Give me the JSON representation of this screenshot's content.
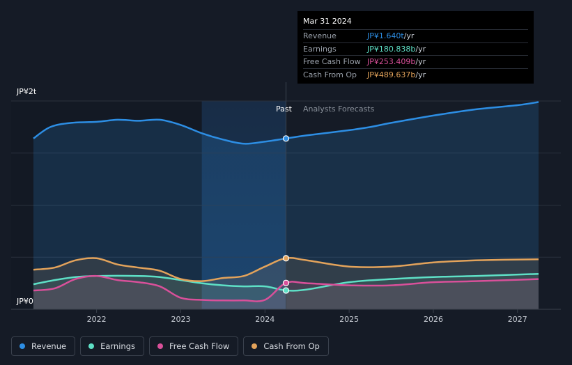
{
  "chart_data": {
    "type": "line",
    "title": "",
    "y_label_top": "JP¥2t",
    "y_label_bottom": "JP¥0",
    "ylim": [
      0,
      2.0
    ],
    "xlim": [
      2021.2,
      2027.25
    ],
    "x_ticks": [
      "2022",
      "2023",
      "2024",
      "2025",
      "2026",
      "2027"
    ],
    "past_label": "Past",
    "forecast_label": "Analysts Forecasts",
    "divider_x": 2024.25,
    "highlight_start": 2023.25,
    "series": [
      {
        "name": "Revenue",
        "unit": "t",
        "color": "#2d8ee4",
        "points": [
          [
            2021.25,
            1.64
          ],
          [
            2021.45,
            1.75
          ],
          [
            2021.7,
            1.79
          ],
          [
            2022.0,
            1.8
          ],
          [
            2022.25,
            1.82
          ],
          [
            2022.5,
            1.81
          ],
          [
            2022.75,
            1.82
          ],
          [
            2023.0,
            1.77
          ],
          [
            2023.25,
            1.69
          ],
          [
            2023.5,
            1.63
          ],
          [
            2023.75,
            1.59
          ],
          [
            2024.0,
            1.61
          ],
          [
            2024.25,
            1.64
          ],
          [
            2024.5,
            1.67
          ],
          [
            2025.0,
            1.72
          ],
          [
            2025.25,
            1.75
          ],
          [
            2025.5,
            1.79
          ],
          [
            2026.0,
            1.86
          ],
          [
            2026.5,
            1.92
          ],
          [
            2027.0,
            1.96
          ],
          [
            2027.25,
            1.99
          ]
        ]
      },
      {
        "name": "Earnings",
        "unit": "b",
        "color": "#5ee0c6",
        "points": [
          [
            2021.25,
            0.24
          ],
          [
            2021.5,
            0.28
          ],
          [
            2021.75,
            0.31
          ],
          [
            2022.0,
            0.32
          ],
          [
            2022.5,
            0.32
          ],
          [
            2022.75,
            0.31
          ],
          [
            2023.0,
            0.28
          ],
          [
            2023.25,
            0.25
          ],
          [
            2023.5,
            0.23
          ],
          [
            2023.75,
            0.22
          ],
          [
            2024.0,
            0.22
          ],
          [
            2024.25,
            0.181
          ],
          [
            2024.5,
            0.19
          ],
          [
            2025.0,
            0.26
          ],
          [
            2025.5,
            0.29
          ],
          [
            2026.0,
            0.31
          ],
          [
            2026.5,
            0.32
          ],
          [
            2027.25,
            0.34
          ]
        ]
      },
      {
        "name": "Free Cash Flow",
        "unit": "b",
        "color": "#d9509a",
        "points": [
          [
            2021.25,
            0.18
          ],
          [
            2021.5,
            0.2
          ],
          [
            2021.75,
            0.29
          ],
          [
            2022.0,
            0.32
          ],
          [
            2022.25,
            0.28
          ],
          [
            2022.5,
            0.26
          ],
          [
            2022.75,
            0.22
          ],
          [
            2023.0,
            0.11
          ],
          [
            2023.25,
            0.09
          ],
          [
            2023.5,
            0.085
          ],
          [
            2023.75,
            0.085
          ],
          [
            2024.0,
            0.09
          ],
          [
            2024.25,
            0.253
          ],
          [
            2024.5,
            0.25
          ],
          [
            2025.0,
            0.23
          ],
          [
            2025.5,
            0.23
          ],
          [
            2026.0,
            0.26
          ],
          [
            2026.5,
            0.27
          ],
          [
            2027.25,
            0.29
          ]
        ]
      },
      {
        "name": "Cash From Op",
        "unit": "b",
        "color": "#e3a35b",
        "points": [
          [
            2021.25,
            0.38
          ],
          [
            2021.5,
            0.4
          ],
          [
            2021.75,
            0.47
          ],
          [
            2022.0,
            0.49
          ],
          [
            2022.25,
            0.43
          ],
          [
            2022.5,
            0.4
          ],
          [
            2022.75,
            0.37
          ],
          [
            2023.0,
            0.29
          ],
          [
            2023.25,
            0.27
          ],
          [
            2023.5,
            0.3
          ],
          [
            2023.75,
            0.32
          ],
          [
            2024.0,
            0.41
          ],
          [
            2024.25,
            0.49
          ],
          [
            2024.5,
            0.47
          ],
          [
            2025.0,
            0.41
          ],
          [
            2025.5,
            0.41
          ],
          [
            2026.0,
            0.45
          ],
          [
            2026.5,
            0.47
          ],
          [
            2027.25,
            0.48
          ]
        ]
      }
    ],
    "tooltip": {
      "date": "Mar 31 2024",
      "rows": [
        {
          "label": "Revenue",
          "value": "JP¥1.640t",
          "suffix": " /yr",
          "color": "#2d8ee4"
        },
        {
          "label": "Earnings",
          "value": "JP¥180.838b",
          "suffix": " /yr",
          "color": "#5ee0c6"
        },
        {
          "label": "Free Cash Flow",
          "value": "JP¥253.409b",
          "suffix": " /yr",
          "color": "#d9509a"
        },
        {
          "label": "Cash From Op",
          "value": "JP¥489.637b",
          "suffix": " /yr",
          "color": "#e3a35b"
        }
      ]
    },
    "legend": [
      {
        "label": "Revenue",
        "color": "#2d8ee4"
      },
      {
        "label": "Earnings",
        "color": "#5ee0c6"
      },
      {
        "label": "Free Cash Flow",
        "color": "#d9509a"
      },
      {
        "label": "Cash From Op",
        "color": "#e3a35b"
      }
    ]
  }
}
